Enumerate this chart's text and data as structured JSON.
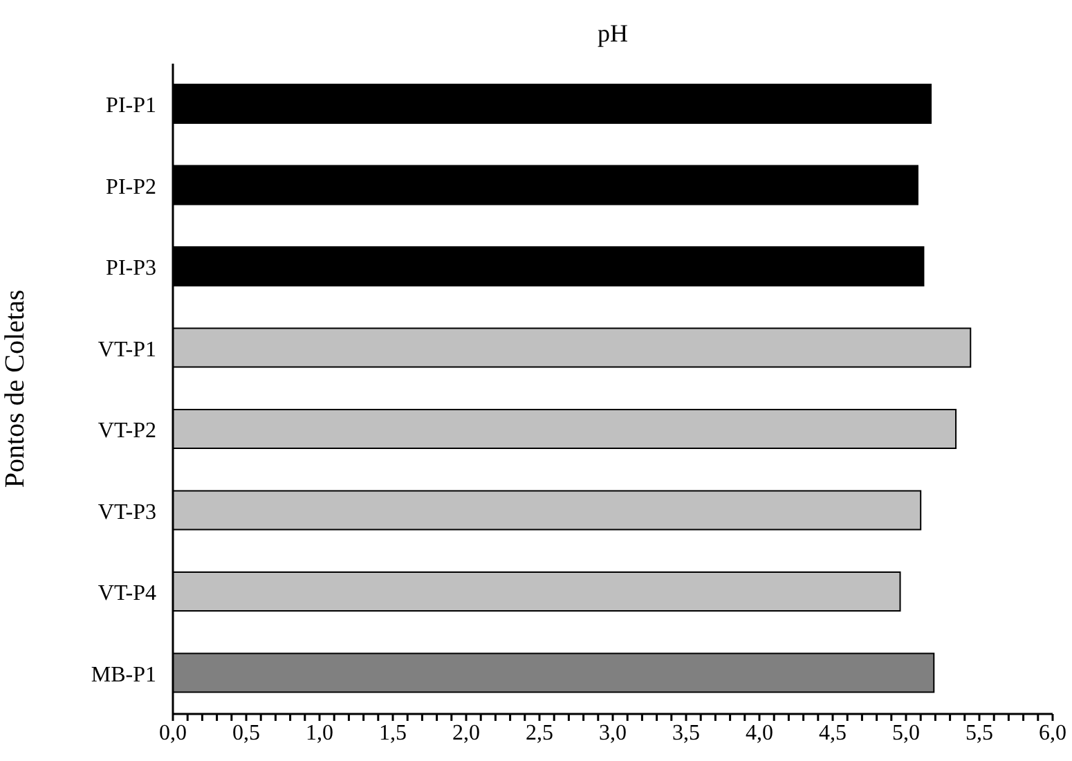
{
  "chart_data": {
    "type": "bar",
    "orientation": "horizontal",
    "title": "pH",
    "ylabel": "Pontos de Coletas",
    "categories": [
      "PI-P1",
      "PI-P2",
      "PI-P3",
      "VT-P1",
      "VT-P2",
      "VT-P3",
      "VT-P4",
      "MB-P1"
    ],
    "values": [
      5.17,
      5.08,
      5.12,
      5.44,
      5.34,
      5.1,
      4.96,
      5.19
    ],
    "colors": [
      "#000000",
      "#000000",
      "#000000",
      "#c0c0c0",
      "#c0c0c0",
      "#c0c0c0",
      "#c0c0c0",
      "#808080"
    ],
    "xlim": [
      0,
      6
    ],
    "xticks": [
      {
        "value": 0,
        "label": "0,0"
      },
      {
        "value": 0.1,
        "label": null
      },
      {
        "value": 0.2,
        "label": null
      },
      {
        "value": 0.3,
        "label": null
      },
      {
        "value": 0.4,
        "label": null
      },
      {
        "value": 0.5,
        "label": "0,5"
      },
      {
        "value": 0.6,
        "label": null
      },
      {
        "value": 0.7,
        "label": null
      },
      {
        "value": 0.8,
        "label": null
      },
      {
        "value": 0.9,
        "label": null
      },
      {
        "value": 1,
        "label": "1,0"
      },
      {
        "value": 1.1,
        "label": null
      },
      {
        "value": 1.2,
        "label": null
      },
      {
        "value": 1.3,
        "label": null
      },
      {
        "value": 1.4,
        "label": null
      },
      {
        "value": 1.5,
        "label": "1,5"
      },
      {
        "value": 1.6,
        "label": null
      },
      {
        "value": 1.7,
        "label": null
      },
      {
        "value": 1.8,
        "label": null
      },
      {
        "value": 1.9,
        "label": null
      },
      {
        "value": 2,
        "label": "2,0"
      },
      {
        "value": 2.1,
        "label": null
      },
      {
        "value": 2.2,
        "label": null
      },
      {
        "value": 2.3,
        "label": null
      },
      {
        "value": 2.4,
        "label": null
      },
      {
        "value": 2.5,
        "label": "2,5"
      },
      {
        "value": 2.6,
        "label": null
      },
      {
        "value": 2.7,
        "label": null
      },
      {
        "value": 2.8,
        "label": null
      },
      {
        "value": 2.9,
        "label": null
      },
      {
        "value": 3,
        "label": "3,0"
      },
      {
        "value": 3.1,
        "label": null
      },
      {
        "value": 3.2,
        "label": null
      },
      {
        "value": 3.3,
        "label": null
      },
      {
        "value": 3.4,
        "label": null
      },
      {
        "value": 3.5,
        "label": "3,5"
      },
      {
        "value": 3.6,
        "label": null
      },
      {
        "value": 3.7,
        "label": null
      },
      {
        "value": 3.8,
        "label": null
      },
      {
        "value": 3.9,
        "label": null
      },
      {
        "value": 4,
        "label": "4,0"
      },
      {
        "value": 4.1,
        "label": null
      },
      {
        "value": 4.2,
        "label": null
      },
      {
        "value": 4.3,
        "label": null
      },
      {
        "value": 4.4,
        "label": null
      },
      {
        "value": 4.5,
        "label": "4,5"
      },
      {
        "value": 4.6,
        "label": null
      },
      {
        "value": 4.7,
        "label": null
      },
      {
        "value": 4.8,
        "label": null
      },
      {
        "value": 4.9,
        "label": null
      },
      {
        "value": 5,
        "label": "5,0"
      },
      {
        "value": 5.1,
        "label": null
      },
      {
        "value": 5.2,
        "label": null
      },
      {
        "value": 5.3,
        "label": null
      },
      {
        "value": 5.4,
        "label": null
      },
      {
        "value": 5.5,
        "label": "5,5"
      },
      {
        "value": 5.6,
        "label": null
      },
      {
        "value": 5.7,
        "label": null
      },
      {
        "value": 5.8,
        "label": null
      },
      {
        "value": 5.9,
        "label": null
      },
      {
        "value": 6,
        "label": "6,0"
      }
    ],
    "grid": false,
    "legend": false
  }
}
